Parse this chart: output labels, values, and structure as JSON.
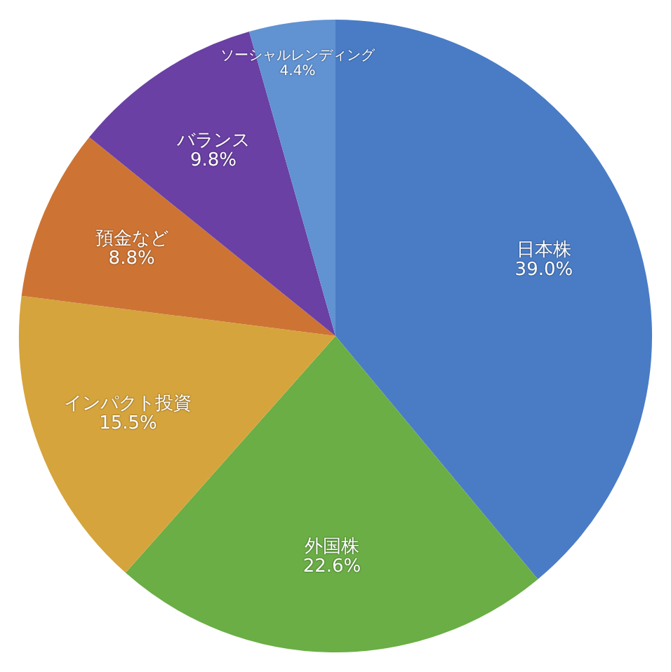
{
  "chart_data": {
    "type": "pie",
    "categories": [
      "日本株",
      "外国株",
      "インパクト投資",
      "預金など",
      "バランス",
      "ソーシャルレンディング"
    ],
    "values": [
      39.0,
      22.6,
      15.5,
      8.8,
      9.8,
      4.4
    ],
    "value_labels": [
      "39.0%",
      "22.6%",
      "15.5%",
      "8.8%",
      "9.8%",
      "4.4%"
    ],
    "colors": [
      "#4a7cc6",
      "#6aae45",
      "#d6a43c",
      "#cd7434",
      "#6a40a4",
      "#6192d2"
    ],
    "legend": false
  }
}
